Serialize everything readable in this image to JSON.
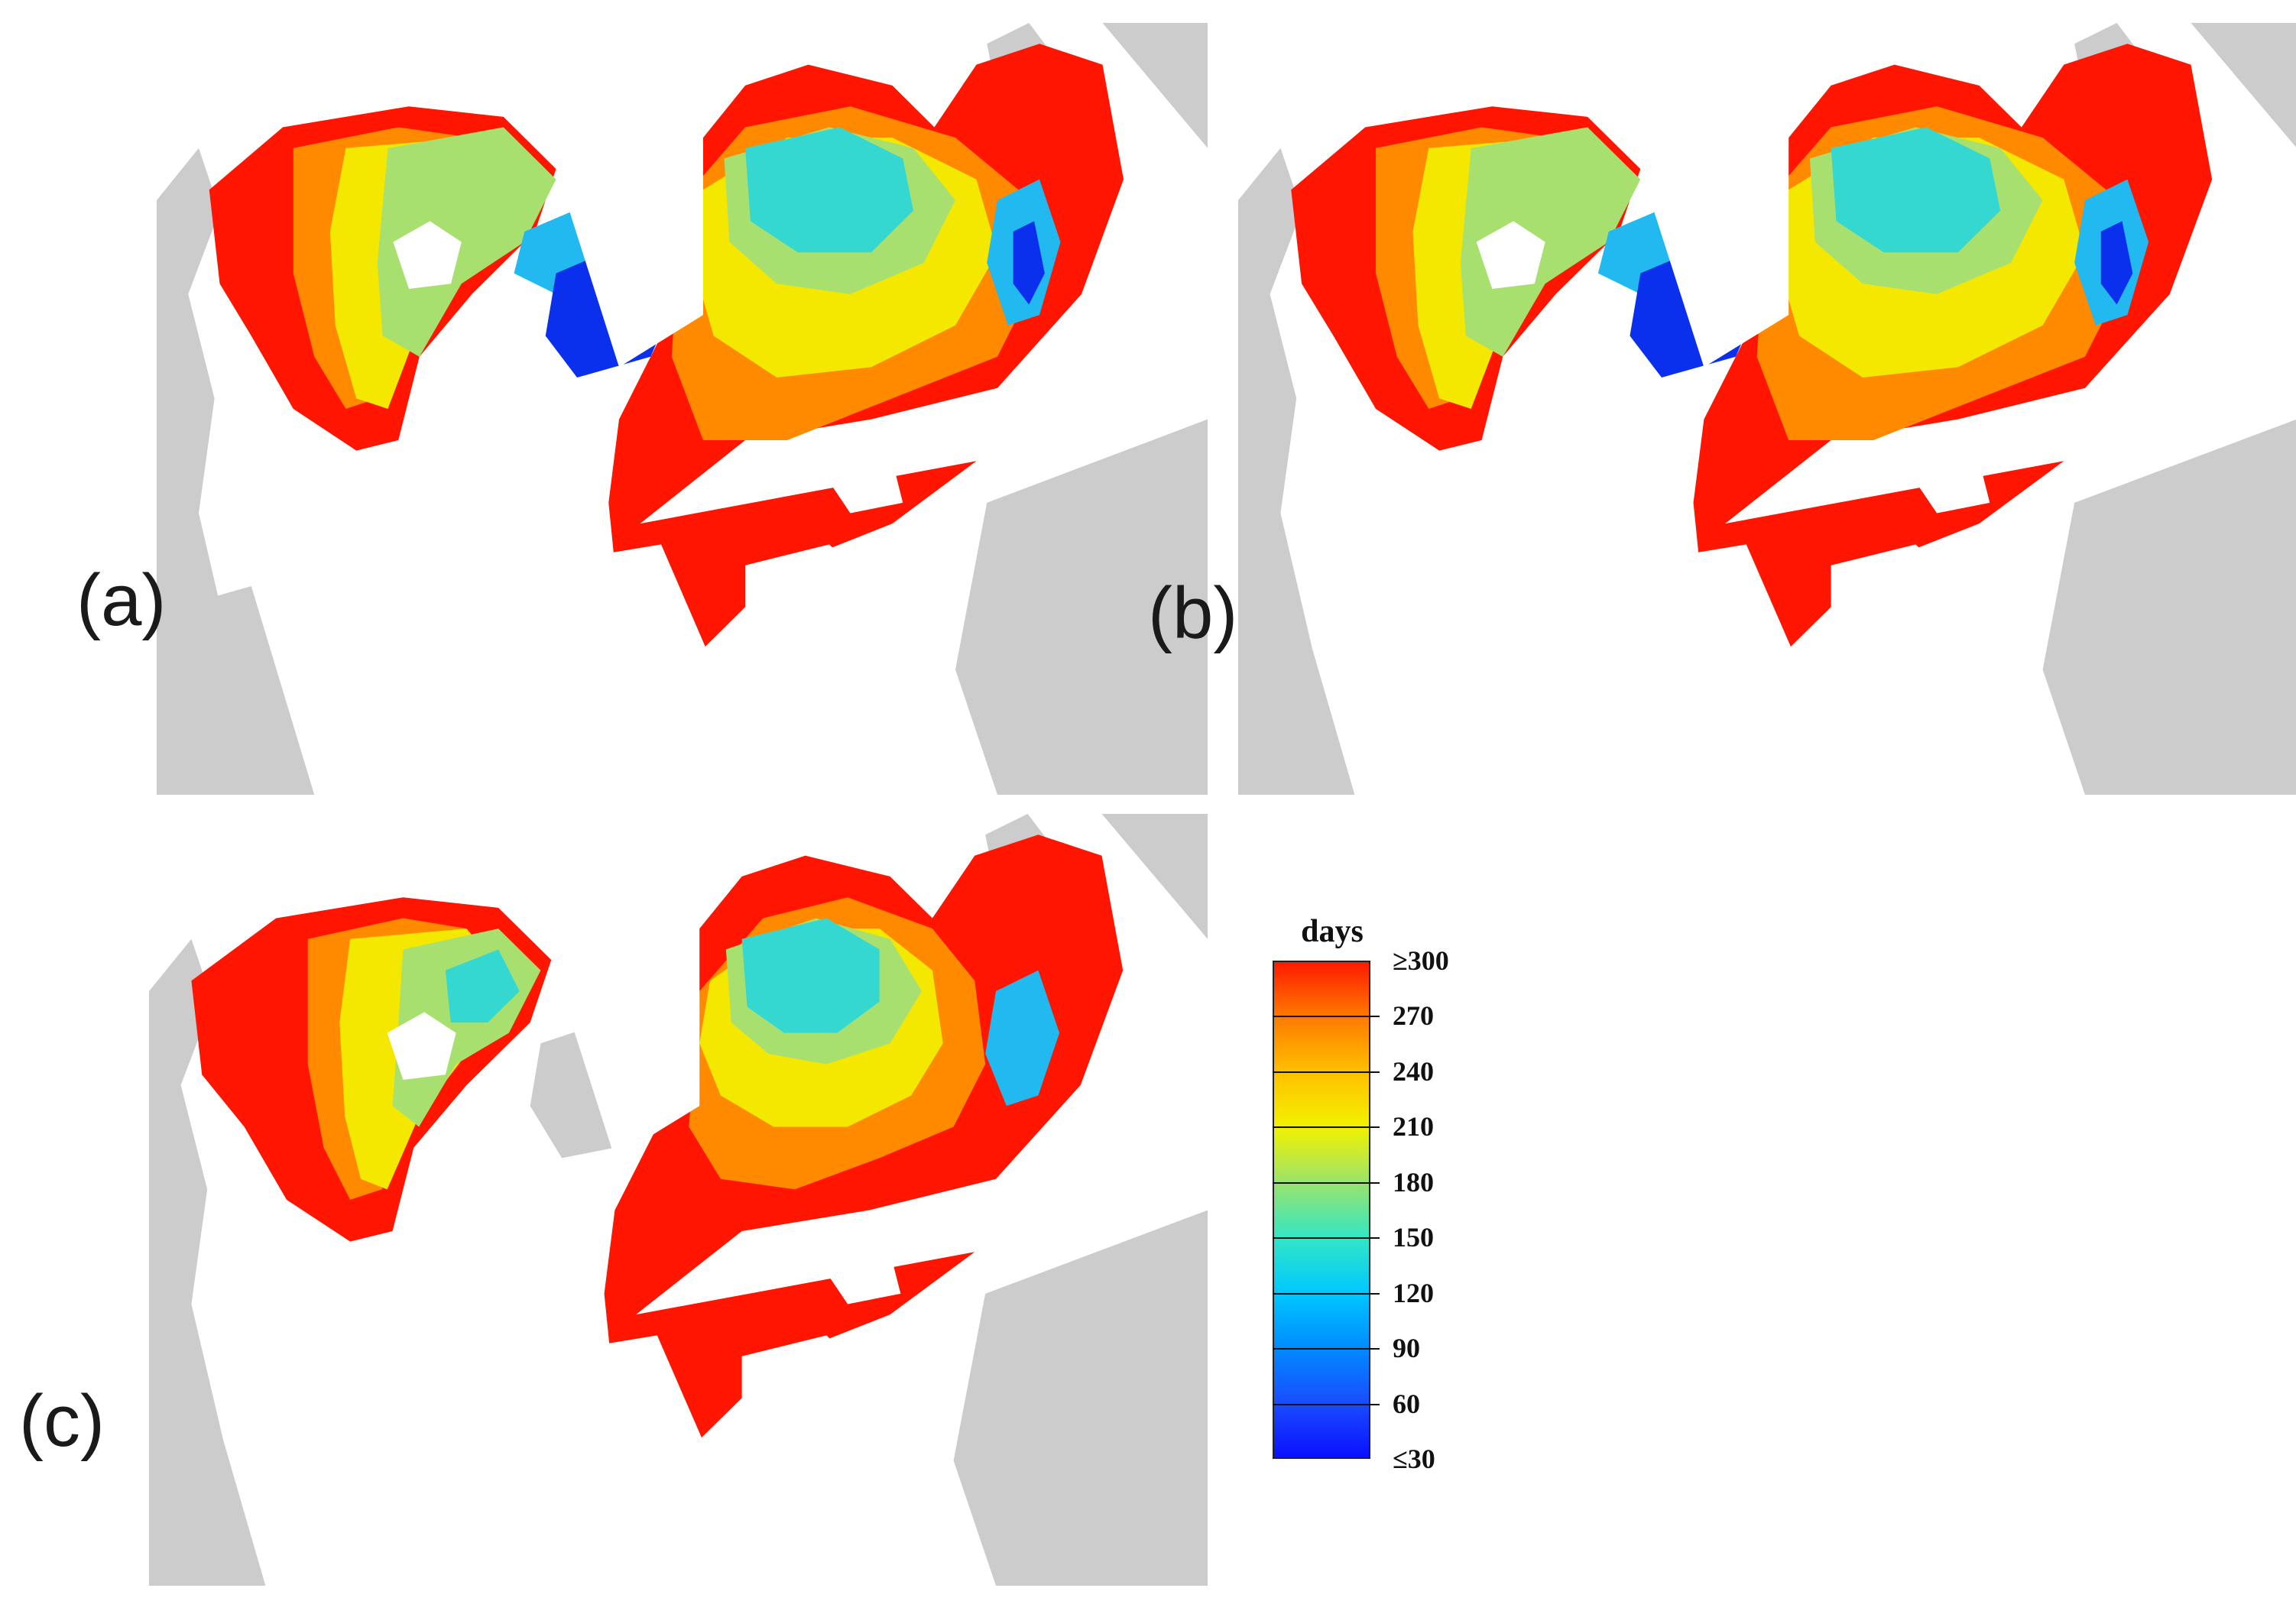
{
  "panels": [
    {
      "id": "a",
      "label": "(a)"
    },
    {
      "id": "b",
      "label": "(b)"
    },
    {
      "id": "c",
      "label": "(c)"
    }
  ],
  "legend": {
    "title": "days",
    "labels": [
      "≥300",
      "270",
      "240",
      "210",
      "180",
      "150",
      "120",
      "90",
      "60",
      "≤30"
    ],
    "values": [
      300,
      270,
      240,
      210,
      180,
      150,
      120,
      90,
      60,
      30
    ],
    "colors": [
      "#ff1a00",
      "#ff7a00",
      "#ffc000",
      "#f2f200",
      "#9be36a",
      "#33e6c4",
      "#00c8ff",
      "#008cff",
      "#1a4dff",
      "#0a10ff"
    ]
  },
  "colors": {
    "land_nodata": "#cccccc",
    "ocean": "#ffffff",
    "high": "#ff1500",
    "orange": "#ff8a00",
    "yellow": "#f5e800",
    "green": "#a8e070",
    "cyan": "#34d8d0",
    "lightblue": "#22b8f0",
    "blue": "#0a30ee"
  }
}
